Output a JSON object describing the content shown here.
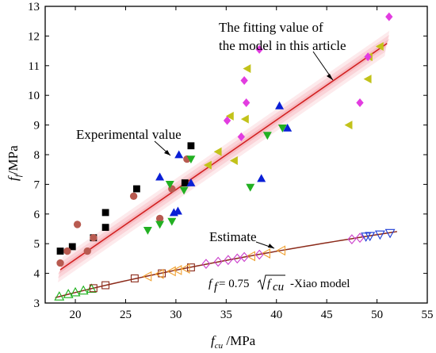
{
  "chart_data": {
    "type": "scatter",
    "xlabel": {
      "main": "f",
      "sub": "cu",
      "unit": " /MPa"
    },
    "ylabel": {
      "main": "f",
      "sub": "f",
      "unit": "/MPa"
    },
    "xlim": [
      17,
      55
    ],
    "ylim": [
      3,
      13
    ],
    "xticks": [
      20,
      25,
      30,
      35,
      40,
      45,
      50,
      55
    ],
    "yticks": [
      3,
      4,
      5,
      6,
      7,
      8,
      9,
      10,
      11,
      12,
      13
    ],
    "annotations": {
      "fit_line1": "The fitting value of",
      "fit_line2": "the model in this article",
      "experimental": "Experimental value",
      "estimate": "Estimate",
      "formula_prefix": "f",
      "formula_sub": "f",
      "formula_eq": " = 0.75",
      "formula_var": "f",
      "formula_var_sub": "cu",
      "formula_suffix": "-Xiao  model"
    },
    "fit_line": {
      "x": [
        18.5,
        51
      ],
      "y": [
        4.12,
        11.75
      ],
      "color": "#d22020",
      "band_color": "#f4a0a8"
    },
    "xiao_curve": {
      "coef": 0.75,
      "x_range": [
        18,
        52
      ],
      "color": "#8b2a1a"
    },
    "experimental_series": [
      {
        "marker": "square",
        "color": "#000000",
        "points": [
          [
            18.5,
            4.75
          ],
          [
            19.7,
            4.9
          ],
          [
            21.8,
            5.2
          ],
          [
            23,
            5.55
          ],
          [
            23,
            6.05
          ],
          [
            26.1,
            6.85
          ],
          [
            30.9,
            7.05
          ],
          [
            31.5,
            8.3
          ]
        ]
      },
      {
        "marker": "circle",
        "color": "#b85a50",
        "points": [
          [
            18.5,
            4.35
          ],
          [
            19.2,
            4.75
          ],
          [
            20.2,
            5.65
          ],
          [
            21.2,
            4.75
          ],
          [
            21.8,
            5.2
          ],
          [
            25.8,
            6.6
          ],
          [
            28.4,
            5.85
          ],
          [
            29.6,
            6.85
          ],
          [
            31.1,
            7.85
          ]
        ]
      },
      {
        "marker": "triangle-up",
        "color": "#0a1fd6",
        "points": [
          [
            28.4,
            7.25
          ],
          [
            29.8,
            6.05
          ],
          [
            30.2,
            6.1
          ],
          [
            30.3,
            8.0
          ],
          [
            31.5,
            7.05
          ],
          [
            38.5,
            7.2
          ],
          [
            40.3,
            9.65
          ],
          [
            41.1,
            8.9
          ]
        ]
      },
      {
        "marker": "triangle-down",
        "color": "#22b022",
        "points": [
          [
            27.2,
            5.45
          ],
          [
            28.4,
            5.65
          ],
          [
            29.6,
            5.75
          ],
          [
            29.4,
            7.0
          ],
          [
            30.8,
            6.8
          ],
          [
            31.5,
            7.85
          ],
          [
            37.4,
            6.9
          ],
          [
            39.1,
            8.65
          ],
          [
            40.6,
            8.9
          ]
        ]
      },
      {
        "marker": "triangle-left",
        "color": "#c2c21a",
        "points": [
          [
            33.2,
            7.65
          ],
          [
            34.2,
            8.1
          ],
          [
            35.4,
            9.3
          ],
          [
            35.8,
            7.8
          ],
          [
            36.9,
            9.2
          ],
          [
            37.1,
            10.9
          ],
          [
            47.2,
            9.0
          ],
          [
            49.1,
            10.55
          ],
          [
            49.2,
            11.3
          ],
          [
            50.3,
            11.65
          ]
        ]
      },
      {
        "marker": "diamond",
        "color": "#e23ce0",
        "points": [
          [
            35.1,
            9.15
          ],
          [
            36.5,
            8.6
          ],
          [
            36.8,
            10.5
          ],
          [
            37.0,
            9.75
          ],
          [
            38.3,
            11.55
          ],
          [
            48.3,
            9.75
          ],
          [
            49.1,
            11.3
          ],
          [
            51.2,
            12.65
          ]
        ]
      }
    ],
    "estimate_series": [
      {
        "marker": "triangle-up-open",
        "color": "#1ab01a",
        "points": [
          [
            18.4,
            3.22
          ],
          [
            19.3,
            3.3
          ],
          [
            20.0,
            3.36
          ],
          [
            20.8,
            3.42
          ],
          [
            21.6,
            3.48
          ]
        ]
      },
      {
        "marker": "square-open",
        "color": "#8b2a1a",
        "points": [
          [
            21.8,
            3.5
          ],
          [
            23.0,
            3.6
          ],
          [
            25.9,
            3.83
          ],
          [
            28.6,
            4.0
          ],
          [
            31.5,
            4.2
          ]
        ]
      },
      {
        "marker": "triangle-left-open",
        "color": "#f0a030",
        "points": [
          [
            27.2,
            3.9
          ],
          [
            28.4,
            3.98
          ],
          [
            29.6,
            4.07
          ],
          [
            30.2,
            4.11
          ],
          [
            31.0,
            4.16
          ],
          [
            37.5,
            4.58
          ],
          [
            39.0,
            4.67
          ],
          [
            40.5,
            4.77
          ]
        ]
      },
      {
        "marker": "diamond-open",
        "color": "#cc40cc",
        "points": [
          [
            33.0,
            4.32
          ],
          [
            34.2,
            4.39
          ],
          [
            35.2,
            4.45
          ],
          [
            36.1,
            4.5
          ],
          [
            36.8,
            4.55
          ],
          [
            38.3,
            4.63
          ],
          [
            47.5,
            5.15
          ],
          [
            48.3,
            5.2
          ]
        ]
      },
      {
        "marker": "triangle-down-open",
        "color": "#1a3ad6",
        "points": [
          [
            48.9,
            5.24
          ],
          [
            49.3,
            5.26
          ],
          [
            50.3,
            5.31
          ],
          [
            51.3,
            5.36
          ]
        ]
      }
    ]
  }
}
